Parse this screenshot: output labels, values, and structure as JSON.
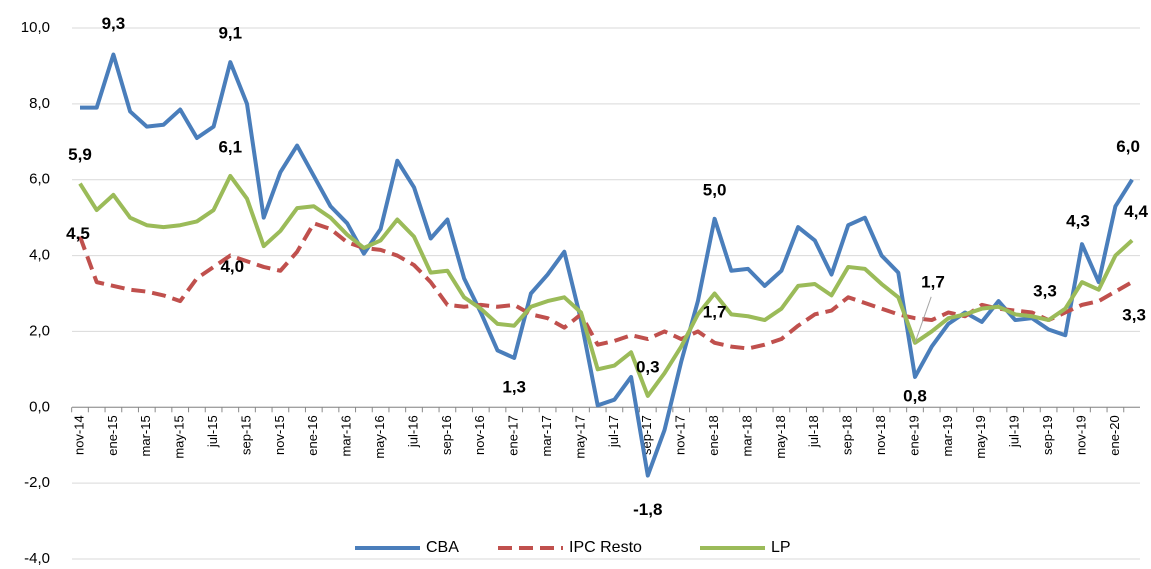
{
  "chart_data": {
    "type": "line",
    "categories": [
      "nov-14",
      null,
      "ene-15",
      null,
      "mar-15",
      null,
      "may-15",
      null,
      "jul-15",
      null,
      "sep-15",
      null,
      "nov-15",
      null,
      "ene-16",
      null,
      "mar-16",
      null,
      "may-16",
      null,
      "jul-16",
      null,
      "sep-16",
      null,
      "nov-16",
      null,
      "ene-17",
      null,
      "mar-17",
      null,
      "may-17",
      null,
      "jul-17",
      null,
      "sep-17",
      null,
      "nov-17",
      null,
      "ene-18",
      null,
      "mar-18",
      null,
      "may-18",
      null,
      "jul-18",
      null,
      "sep-18",
      null,
      "nov-18",
      null,
      "ene-19",
      null,
      "mar-19",
      null,
      "may-19",
      null,
      "jul-19",
      null,
      "sep-19",
      null,
      "nov-19",
      null,
      "ene-20",
      null
    ],
    "series": [
      {
        "name": "CBA",
        "color": "#4a7ebb",
        "dashed": false,
        "values": [
          7.9,
          7.9,
          9.3,
          7.8,
          7.4,
          7.45,
          7.85,
          7.1,
          7.4,
          9.1,
          8.0,
          5.0,
          6.2,
          6.9,
          6.1,
          5.3,
          4.85,
          4.05,
          4.7,
          6.5,
          5.8,
          4.45,
          4.95,
          3.4,
          2.5,
          1.5,
          1.3,
          3.0,
          3.5,
          4.1,
          2.3,
          0.05,
          0.2,
          0.8,
          -1.8,
          -0.6,
          1.2,
          2.8,
          4.97,
          3.6,
          3.65,
          3.2,
          3.6,
          4.75,
          4.4,
          3.5,
          4.8,
          5.0,
          4.0,
          3.55,
          0.8,
          1.6,
          2.2,
          2.5,
          2.25,
          2.8,
          2.3,
          2.35,
          2.05,
          1.9,
          4.3,
          3.3,
          5.3,
          6.0
        ],
        "value_labels": [
          null,
          null,
          "9,3",
          null,
          null,
          null,
          null,
          null,
          null,
          "9,1",
          null,
          null,
          null,
          null,
          null,
          null,
          null,
          null,
          null,
          null,
          null,
          null,
          null,
          null,
          null,
          null,
          "1,3",
          null,
          null,
          null,
          null,
          null,
          null,
          null,
          "-1,8",
          null,
          null,
          null,
          "5,0",
          null,
          null,
          null,
          null,
          null,
          null,
          null,
          null,
          null,
          null,
          null,
          "0,8",
          null,
          null,
          null,
          null,
          null,
          null,
          null,
          null,
          null,
          "4,3",
          null,
          null,
          "6,0"
        ]
      },
      {
        "name": "IPC Resto",
        "color": "#c0504d",
        "dashed": true,
        "values": [
          4.5,
          3.3,
          3.2,
          3.1,
          3.05,
          2.95,
          2.8,
          3.4,
          3.7,
          4.0,
          3.85,
          3.7,
          3.6,
          4.1,
          4.85,
          4.7,
          4.35,
          4.2,
          4.15,
          4.0,
          3.75,
          3.3,
          2.7,
          2.65,
          2.7,
          2.65,
          2.7,
          2.45,
          2.35,
          2.1,
          2.45,
          1.65,
          1.75,
          1.9,
          1.8,
          2.0,
          1.8,
          2.0,
          1.7,
          1.6,
          1.55,
          1.65,
          1.8,
          2.15,
          2.45,
          2.55,
          2.9,
          2.75,
          2.6,
          2.45,
          2.35,
          2.3,
          2.5,
          2.4,
          2.7,
          2.6,
          2.55,
          2.5,
          2.3,
          2.5,
          2.7,
          2.8,
          3.05,
          3.3
        ],
        "value_labels": [
          "4,5",
          null,
          null,
          null,
          null,
          null,
          null,
          null,
          null,
          "4,0",
          null,
          null,
          null,
          null,
          null,
          null,
          null,
          null,
          null,
          null,
          null,
          null,
          null,
          null,
          null,
          null,
          null,
          null,
          null,
          null,
          null,
          null,
          null,
          null,
          null,
          null,
          null,
          null,
          "1,7",
          null,
          null,
          null,
          null,
          null,
          null,
          null,
          null,
          null,
          null,
          null,
          null,
          null,
          null,
          null,
          null,
          null,
          null,
          null,
          null,
          null,
          null,
          null,
          null,
          "3,3"
        ]
      },
      {
        "name": "LP",
        "color": "#9bbb59",
        "dashed": false,
        "values": [
          5.9,
          5.2,
          5.6,
          5.0,
          4.8,
          4.75,
          4.8,
          4.9,
          5.2,
          6.1,
          5.5,
          4.25,
          4.65,
          5.25,
          5.3,
          5.0,
          4.55,
          4.2,
          4.4,
          4.95,
          4.5,
          3.55,
          3.6,
          2.9,
          2.6,
          2.2,
          2.15,
          2.65,
          2.8,
          2.9,
          2.5,
          1.0,
          1.1,
          1.45,
          0.3,
          0.9,
          1.6,
          2.45,
          3.0,
          2.45,
          2.4,
          2.3,
          2.6,
          3.2,
          3.25,
          2.95,
          3.7,
          3.65,
          3.25,
          2.9,
          1.7,
          2.0,
          2.35,
          2.45,
          2.6,
          2.65,
          2.45,
          2.4,
          2.3,
          2.6,
          3.3,
          3.1,
          4.0,
          4.4
        ],
        "value_labels": [
          "5,9",
          null,
          null,
          null,
          null,
          null,
          null,
          null,
          null,
          "6,1",
          null,
          null,
          null,
          null,
          null,
          null,
          null,
          null,
          null,
          null,
          null,
          null,
          null,
          null,
          null,
          null,
          null,
          null,
          null,
          null,
          null,
          null,
          null,
          null,
          "0,3",
          null,
          null,
          null,
          null,
          null,
          null,
          null,
          null,
          null,
          null,
          null,
          null,
          null,
          null,
          null,
          "1,7",
          null,
          null,
          null,
          null,
          null,
          null,
          null,
          null,
          null,
          "3,3",
          null,
          null,
          "4,4"
        ]
      }
    ],
    "ylim": [
      -4,
      10
    ],
    "yticks": [
      {
        "value": -4,
        "label": "-4,0"
      },
      {
        "value": -2,
        "label": "-2,0"
      },
      {
        "value": 0,
        "label": "0,0"
      },
      {
        "value": 2,
        "label": "2,0"
      },
      {
        "value": 4,
        "label": "4,0"
      },
      {
        "value": 6,
        "label": "6,0"
      },
      {
        "value": 8,
        "label": "8,0"
      },
      {
        "value": 10,
        "label": "10,0"
      }
    ],
    "grid": true,
    "legend": "bottom"
  }
}
